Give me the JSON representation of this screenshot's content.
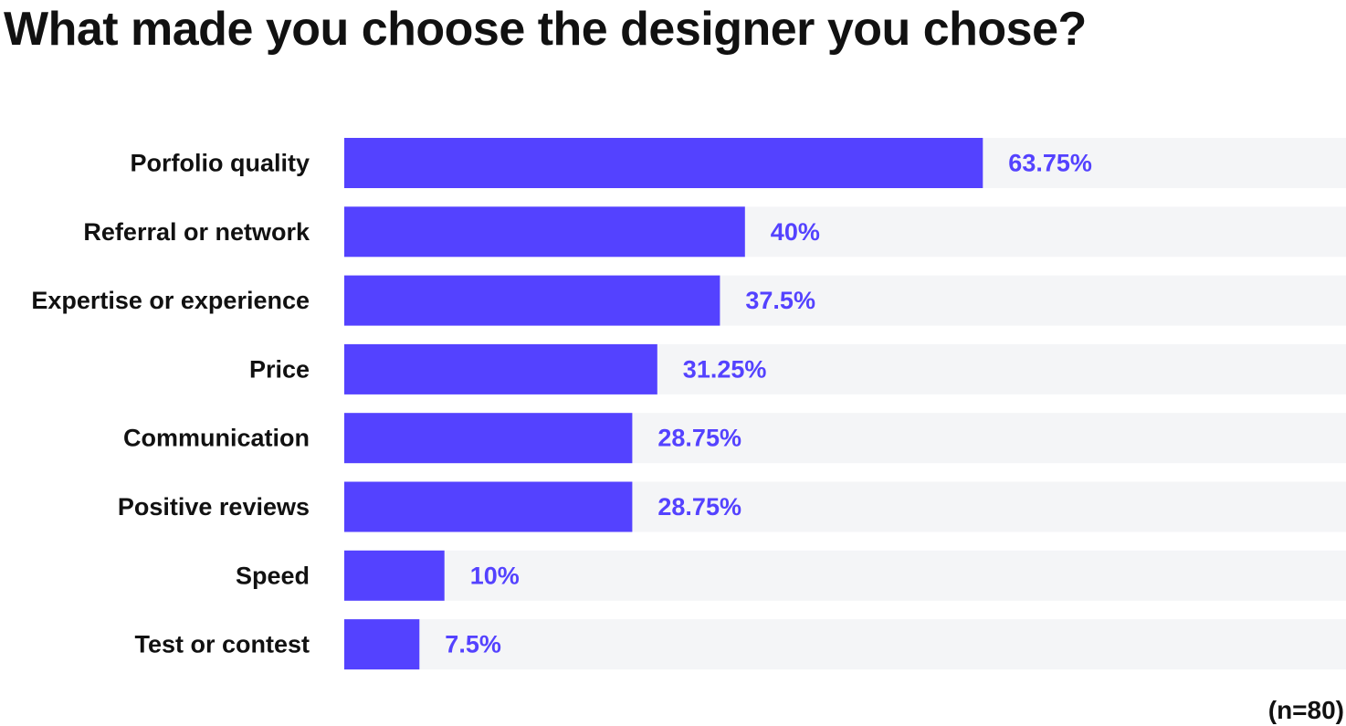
{
  "title": "What made you choose the designer you chose?",
  "note": "(n=80)",
  "colors": {
    "bar": "#5442FF",
    "track": "#F4F5F7",
    "value_label": "#5442FF",
    "category_label": "#111111"
  },
  "chart_data": {
    "type": "bar",
    "orientation": "horizontal",
    "categories": [
      "Porfolio quality",
      "Referral or network",
      "Expertise or experience",
      "Price",
      "Communication",
      "Positive reviews",
      "Speed",
      "Test or contest"
    ],
    "values": [
      63.75,
      40,
      37.5,
      31.25,
      28.75,
      28.75,
      10,
      7.5
    ],
    "value_labels": [
      "63.75%",
      "40%",
      "37.5%",
      "31.25%",
      "28.75%",
      "28.75%",
      "10%",
      "7.5%"
    ],
    "xlim": [
      0,
      100
    ],
    "grid": false
  }
}
